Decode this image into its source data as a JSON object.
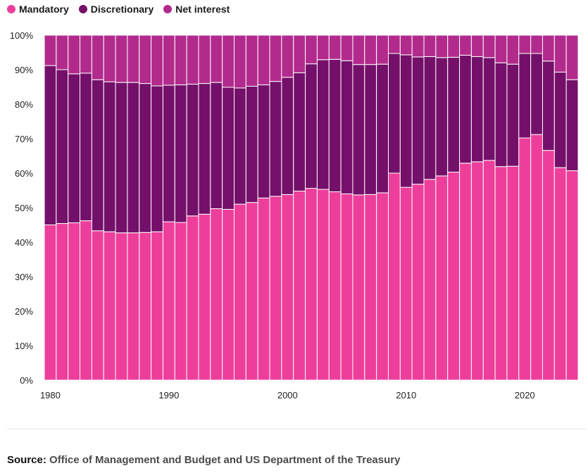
{
  "legend": {
    "mandatory": "Mandatory",
    "discretionary": "Discretionary",
    "net_interest": "Net interest"
  },
  "colors": {
    "mandatory": "#ee3e9b",
    "discretionary": "#74106a",
    "net_interest": "#b22b8c"
  },
  "source": {
    "label": "Source:",
    "text": "Office of Management and Budget and US Department of the Treasury"
  },
  "chart_data": {
    "type": "bar",
    "stacked": true,
    "title": "",
    "xlabel": "",
    "ylabel": "",
    "x_ticks": [
      "1980",
      "1990",
      "2000",
      "2010",
      "2020"
    ],
    "y_ticks": [
      "0%",
      "10%",
      "20%",
      "30%",
      "40%",
      "50%",
      "60%",
      "70%",
      "80%",
      "90%",
      "100%"
    ],
    "ylim": [
      0,
      100
    ],
    "legend_position": "top-left",
    "grid": false,
    "categories": [
      1980,
      1981,
      1982,
      1983,
      1984,
      1985,
      1986,
      1987,
      1988,
      1989,
      1990,
      1991,
      1992,
      1993,
      1994,
      1995,
      1996,
      1997,
      1998,
      1999,
      2000,
      2001,
      2002,
      2003,
      2004,
      2005,
      2006,
      2007,
      2008,
      2009,
      2010,
      2011,
      2012,
      2013,
      2014,
      2015,
      2016,
      2017,
      2018,
      2019,
      2020,
      2021,
      2022,
      2023,
      2024
    ],
    "series": [
      {
        "name": "Mandatory",
        "values": [
          45.0,
          45.4,
          45.6,
          46.2,
          43.3,
          43.0,
          42.7,
          42.7,
          42.8,
          43.0,
          45.9,
          45.7,
          47.6,
          48.1,
          49.7,
          49.5,
          51.0,
          51.5,
          52.8,
          53.3,
          53.8,
          54.8,
          55.6,
          55.3,
          54.6,
          54.0,
          53.7,
          53.8,
          54.3,
          60.0,
          55.9,
          56.8,
          58.2,
          59.2,
          60.3,
          62.9,
          63.3,
          63.7,
          61.9,
          62.0,
          70.2,
          71.2,
          66.6,
          61.6,
          60.7
        ]
      },
      {
        "name": "Discretionary",
        "values": [
          46.2,
          44.6,
          43.2,
          42.8,
          43.8,
          43.5,
          43.6,
          43.6,
          43.2,
          42.3,
          39.6,
          39.9,
          38.2,
          37.9,
          36.6,
          35.4,
          33.7,
          33.7,
          32.8,
          33.3,
          34.0,
          34.3,
          36.1,
          37.6,
          38.4,
          38.6,
          37.8,
          37.7,
          37.3,
          34.7,
          38.4,
          36.9,
          35.6,
          34.3,
          33.3,
          31.3,
          30.5,
          29.8,
          30.1,
          29.6,
          24.5,
          23.5,
          25.9,
          27.7,
          26.4
        ]
      },
      {
        "name": "Net interest",
        "values": [
          8.8,
          10.0,
          11.2,
          11.0,
          12.9,
          13.5,
          13.7,
          13.7,
          14.0,
          14.7,
          14.5,
          14.4,
          14.2,
          14.0,
          13.7,
          15.1,
          15.3,
          14.8,
          14.4,
          13.4,
          12.2,
          10.9,
          8.3,
          7.1,
          7.0,
          7.4,
          8.5,
          8.5,
          8.4,
          5.3,
          5.7,
          6.3,
          6.2,
          6.5,
          6.4,
          5.8,
          6.2,
          6.5,
          8.0,
          8.4,
          5.3,
          5.3,
          7.5,
          10.7,
          12.9
        ]
      }
    ]
  }
}
